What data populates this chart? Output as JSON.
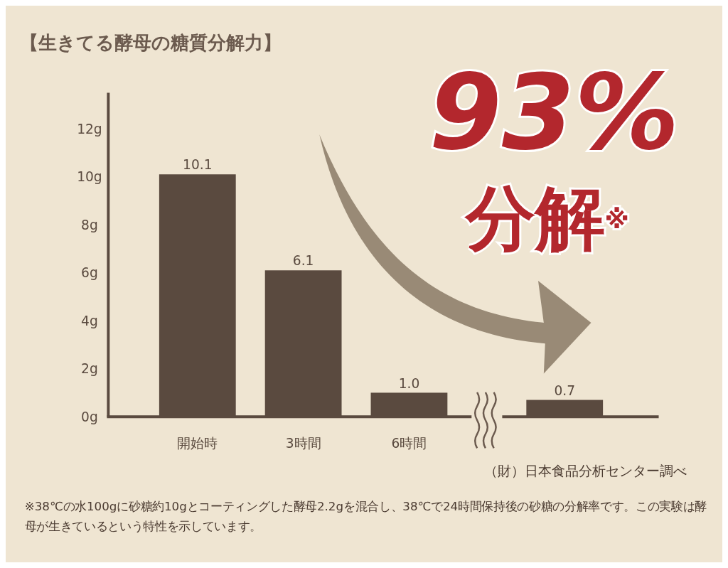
{
  "chart_data": {
    "type": "bar",
    "title": "【生きてる酵母の糖質分解力】",
    "categories": [
      "開始時",
      "3時間",
      "6時間",
      null
    ],
    "values": [
      10.1,
      6.1,
      1.0,
      0.7
    ],
    "value_labels": [
      "10.1",
      "6.1",
      "1.0",
      "0.7"
    ],
    "color": "#5a4a3f",
    "ylim": [
      0,
      13.5
    ],
    "yticks": [
      {
        "value": 0,
        "label": "0g"
      },
      {
        "value": 2,
        "label": "2g"
      },
      {
        "value": 4,
        "label": "4g"
      },
      {
        "value": 6,
        "label": "6g"
      },
      {
        "value": 8,
        "label": "8g"
      },
      {
        "value": 10,
        "label": "10g"
      },
      {
        "value": 12,
        "label": "12g"
      }
    ],
    "grid": false,
    "annotations": [
      "93%分解$^{※}$",
      "（財）日本食品分析センター調べ",
      "※38℃の水100gに砂糖約10gとコーティングした酵母2.2gを混合し、38℃で24時間保持後の砂糖の分解率です。この実験は酵母が生きているという特性を示しています。"
    ]
  }
}
